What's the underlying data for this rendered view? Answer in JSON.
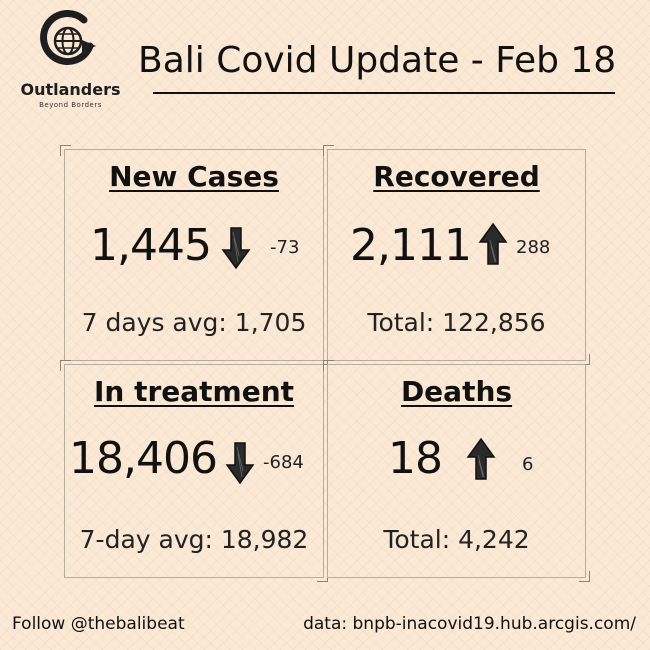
{
  "brand": {
    "name": "Outlanders",
    "tagline": "Beyond Borders",
    "logo_icon": "globe-icon"
  },
  "title": "Bali Covid Update - Feb 18",
  "cards": {
    "new_cases": {
      "heading": "New Cases",
      "value": "1,445",
      "trend": "down",
      "delta": "-73",
      "footer": "7 days avg: 1,705"
    },
    "recovered": {
      "heading": "Recovered",
      "value": "2,111",
      "trend": "up",
      "delta": "288",
      "footer": "Total: 122,856"
    },
    "in_treatment": {
      "heading": "In treatment",
      "value": "18,406",
      "trend": "down",
      "delta": "-684",
      "footer": "7-day avg: 18,982"
    },
    "deaths": {
      "heading": "Deaths",
      "value": "18",
      "trend": "up",
      "delta": "6",
      "footer": "Total: 4,242"
    }
  },
  "footer": {
    "follow": "Follow @thebalibeat",
    "source": "data: bnpb-inacovid19.hub.arcgis.com/"
  },
  "colors": {
    "background": "#fbe9d6",
    "text": "#111111",
    "border": "#b9ab9d"
  }
}
